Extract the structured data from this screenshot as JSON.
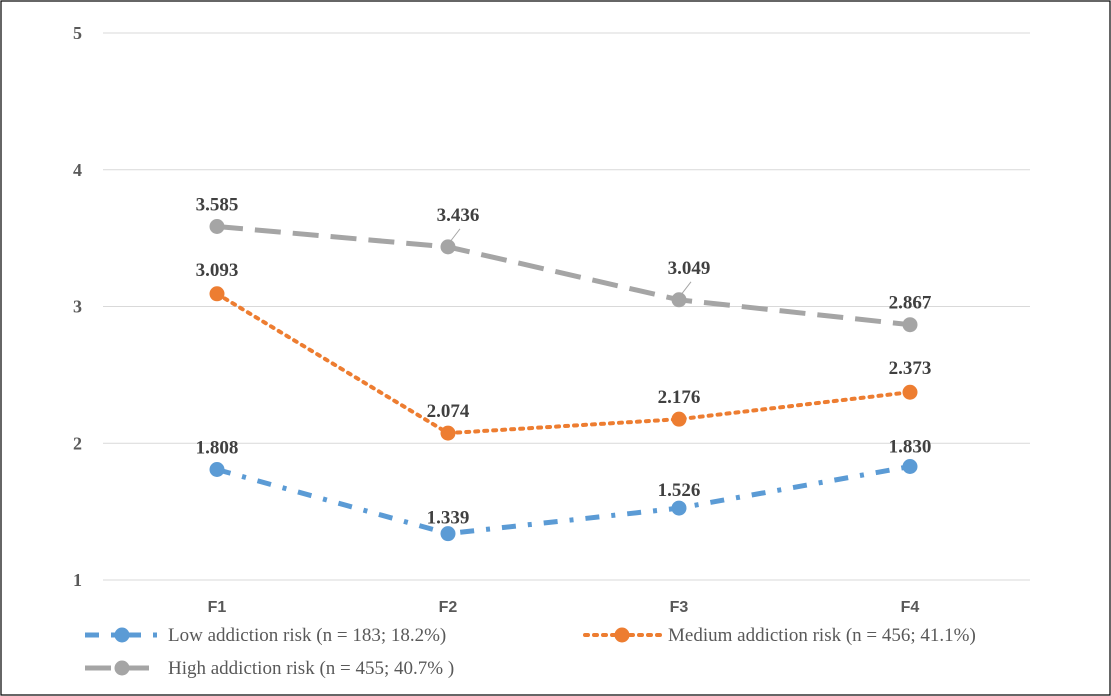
{
  "chart_data": {
    "type": "line",
    "title": "",
    "xlabel": "",
    "ylabel": "",
    "categories": [
      "F1",
      "F2",
      "F3",
      "F4"
    ],
    "yticks": [
      "1",
      "2",
      "3",
      "4",
      "5"
    ],
    "ylim": [
      1,
      5
    ],
    "grid": true,
    "legend_position": "bottom",
    "series": [
      {
        "name": "Low addiction risk (n = 183; 18.2%)",
        "values": [
          1.808,
          1.339,
          1.526,
          1.83
        ],
        "labels": [
          "1.808",
          "1.339",
          "1.526",
          "1.830"
        ],
        "color": "#5b9bd5",
        "line_style": "dash-dot"
      },
      {
        "name": "Medium addiction risk (n = 456; 41.1%)",
        "values": [
          3.093,
          2.074,
          2.176,
          2.373
        ],
        "labels": [
          "3.093",
          "2.074",
          "2.176",
          "2.373"
        ],
        "color": "#ed7d31",
        "line_style": "dotted"
      },
      {
        "name": "High addiction risk (n = 455; 40.7% )",
        "values": [
          3.585,
          3.436,
          3.049,
          2.867
        ],
        "labels": [
          "3.585",
          "3.436",
          "3.049",
          "2.867"
        ],
        "color": "#a5a5a5",
        "line_style": "long-dash"
      }
    ]
  }
}
